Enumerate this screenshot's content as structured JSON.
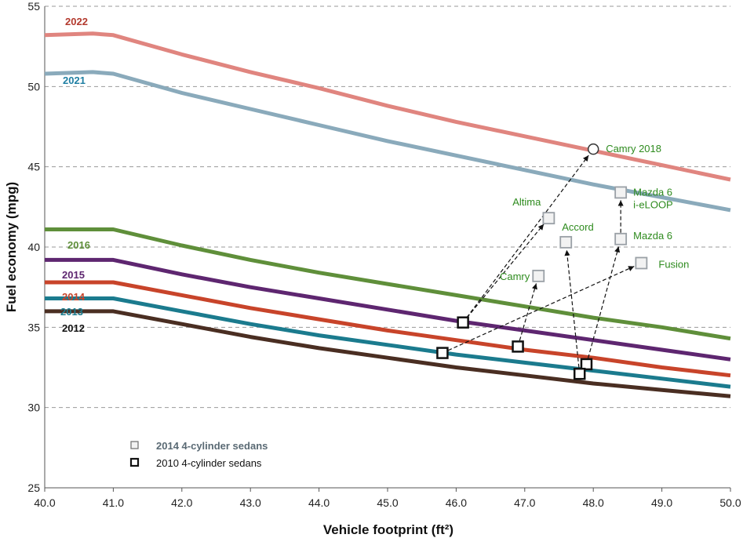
{
  "chart_data": {
    "type": "line",
    "xlabel": "Vehicle footprint (ft²)",
    "ylabel": "Fuel economy  (mpg)",
    "xlim": [
      40,
      50
    ],
    "ylim": [
      25,
      55
    ],
    "x_ticks": [
      "40.0",
      "41.0",
      "42.0",
      "43.0",
      "44.0",
      "45.0",
      "46.0",
      "47.0",
      "48.0",
      "49.0",
      "50.0"
    ],
    "y_ticks": [
      "25",
      "30",
      "35",
      "40",
      "45",
      "50",
      "55"
    ],
    "grid": "horizontal dashed",
    "standards": [
      {
        "name": "2022",
        "color": "#e0857f",
        "label_color": "#b33a2e",
        "points": [
          [
            40,
            53.2
          ],
          [
            40.7,
            53.3
          ],
          [
            41,
            53.2
          ],
          [
            42,
            52.0
          ],
          [
            43,
            50.9
          ],
          [
            44,
            49.9
          ],
          [
            45,
            48.8
          ],
          [
            46,
            47.8
          ],
          [
            47,
            46.9
          ],
          [
            48,
            46.0
          ],
          [
            49,
            45.1
          ],
          [
            50,
            44.2
          ]
        ]
      },
      {
        "name": "2021",
        "color": "#8aaabb",
        "label_color": "#1f7fa3",
        "points": [
          [
            40,
            50.8
          ],
          [
            40.7,
            50.9
          ],
          [
            41,
            50.8
          ],
          [
            42,
            49.6
          ],
          [
            43,
            48.6
          ],
          [
            44,
            47.6
          ],
          [
            45,
            46.6
          ],
          [
            46,
            45.7
          ],
          [
            47,
            44.8
          ],
          [
            48,
            43.9
          ],
          [
            49,
            43.1
          ],
          [
            50,
            42.3
          ]
        ]
      },
      {
        "name": "2016",
        "color": "#5f8f3a",
        "label_color": "#5f8f3a",
        "points": [
          [
            40,
            41.1
          ],
          [
            41,
            41.1
          ],
          [
            42,
            40.1
          ],
          [
            43,
            39.2
          ],
          [
            44,
            38.4
          ],
          [
            45,
            37.7
          ],
          [
            46,
            37.0
          ],
          [
            47,
            36.3
          ],
          [
            48,
            35.6
          ],
          [
            49,
            35.0
          ],
          [
            50,
            34.3
          ]
        ]
      },
      {
        "name": "2015",
        "color": "#5e2670",
        "label_color": "#5e2670",
        "points": [
          [
            40,
            39.2
          ],
          [
            41,
            39.2
          ],
          [
            42,
            38.3
          ],
          [
            43,
            37.5
          ],
          [
            44,
            36.8
          ],
          [
            45,
            36.1
          ],
          [
            46,
            35.4
          ],
          [
            47,
            34.8
          ],
          [
            48,
            34.2
          ],
          [
            49,
            33.6
          ],
          [
            50,
            33.0
          ]
        ]
      },
      {
        "name": "2014",
        "color": "#c8442a",
        "label_color": "#c8442a",
        "points": [
          [
            40,
            37.8
          ],
          [
            41,
            37.8
          ],
          [
            42,
            37.0
          ],
          [
            43,
            36.2
          ],
          [
            44,
            35.5
          ],
          [
            45,
            34.8
          ],
          [
            46,
            34.2
          ],
          [
            47,
            33.6
          ],
          [
            48,
            33.1
          ],
          [
            49,
            32.5
          ],
          [
            50,
            32.0
          ]
        ]
      },
      {
        "name": "2013",
        "color": "#1b7b8e",
        "label_color": "#1b7b8e",
        "points": [
          [
            40,
            36.8
          ],
          [
            41,
            36.8
          ],
          [
            42,
            36.0
          ],
          [
            43,
            35.2
          ],
          [
            44,
            34.5
          ],
          [
            45,
            33.9
          ],
          [
            46,
            33.3
          ],
          [
            47,
            32.8
          ],
          [
            48,
            32.3
          ],
          [
            49,
            31.8
          ],
          [
            50,
            31.3
          ]
        ]
      },
      {
        "name": "2012",
        "color": "#4a2e22",
        "label_color": "#111111",
        "points": [
          [
            40,
            36.0
          ],
          [
            41,
            36.0
          ],
          [
            42,
            35.2
          ],
          [
            43,
            34.4
          ],
          [
            44,
            33.7
          ],
          [
            45,
            33.1
          ],
          [
            46,
            32.5
          ],
          [
            47,
            32.0
          ],
          [
            48,
            31.5
          ],
          [
            49,
            31.1
          ],
          [
            50,
            30.7
          ]
        ]
      }
    ],
    "vehicles_2014": [
      {
        "name": "Camry 2018",
        "x": 48.0,
        "y": 46.1,
        "marker": "circle"
      },
      {
        "name": "Mazda 6\ni-eLOOP",
        "x": 48.4,
        "y": 43.4,
        "marker": "square"
      },
      {
        "name": "Altima",
        "x": 47.35,
        "y": 41.8,
        "marker": "square"
      },
      {
        "name": "Accord",
        "x": 47.6,
        "y": 40.3,
        "marker": "square"
      },
      {
        "name": "Mazda 6",
        "x": 48.4,
        "y": 40.5,
        "marker": "square"
      },
      {
        "name": "Fusion",
        "x": 48.7,
        "y": 39.0,
        "marker": "square"
      },
      {
        "name": "Camry",
        "x": 47.2,
        "y": 38.2,
        "marker": "square"
      }
    ],
    "vehicles_2010": [
      {
        "x": 46.1,
        "y": 35.3
      },
      {
        "x": 45.8,
        "y": 33.4
      },
      {
        "x": 46.9,
        "y": 33.8
      },
      {
        "x": 47.9,
        "y": 32.7
      },
      {
        "x": 47.8,
        "y": 32.1
      }
    ],
    "arrows": [
      {
        "from": [
          46.1,
          35.3
        ],
        "to": [
          48.0,
          46.1
        ]
      },
      {
        "from": [
          46.1,
          35.3
        ],
        "to": [
          47.35,
          41.8
        ]
      },
      {
        "from": [
          45.8,
          33.4
        ],
        "to": [
          48.7,
          39.0
        ]
      },
      {
        "from": [
          46.9,
          33.8
        ],
        "to": [
          47.2,
          38.2
        ]
      },
      {
        "from": [
          47.9,
          32.7
        ],
        "to": [
          48.4,
          40.5
        ]
      },
      {
        "from": [
          47.8,
          32.1
        ],
        "to": [
          47.6,
          40.3
        ]
      },
      {
        "from": [
          48.4,
          40.5
        ],
        "to": [
          48.4,
          43.4
        ]
      }
    ],
    "legend": [
      {
        "label": "2014 4-cylinder sedans",
        "style": "gray-square",
        "text_color": "#5a6a74",
        "bold": true
      },
      {
        "label": "2010 4-cylinder sedans",
        "style": "black-square",
        "text_color": "#111111",
        "bold": false
      }
    ],
    "legend_position": "bottom-left",
    "colors": {
      "vehicle_label": "#2e8b1e",
      "grid": "#9a9a9a",
      "marker_2014": "#9aa0a6"
    }
  }
}
